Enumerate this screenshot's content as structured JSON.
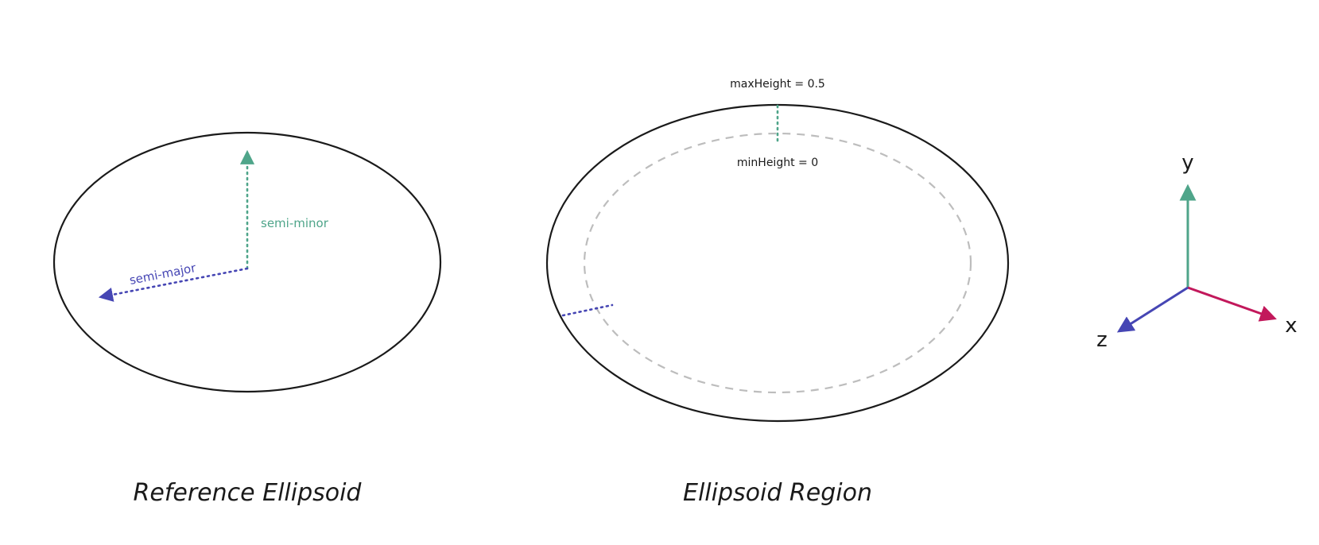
{
  "colors": {
    "green": "#4fa58a",
    "blue": "#4646b4",
    "red": "#c2185b",
    "outline": "#1a1a1a",
    "dashed": "#bdbdbd"
  },
  "reference_ellipsoid": {
    "semi_minor_label": "semi-minor",
    "semi_major_label": "semi-major",
    "caption": "Reference Ellipsoid"
  },
  "ellipsoid_region": {
    "max_height_label": "maxHeight = 0.5",
    "min_height_label": "minHeight = 0",
    "caption": "Ellipsoid Region"
  },
  "axes": {
    "x_label": "x",
    "y_label": "y",
    "z_label": "z"
  }
}
